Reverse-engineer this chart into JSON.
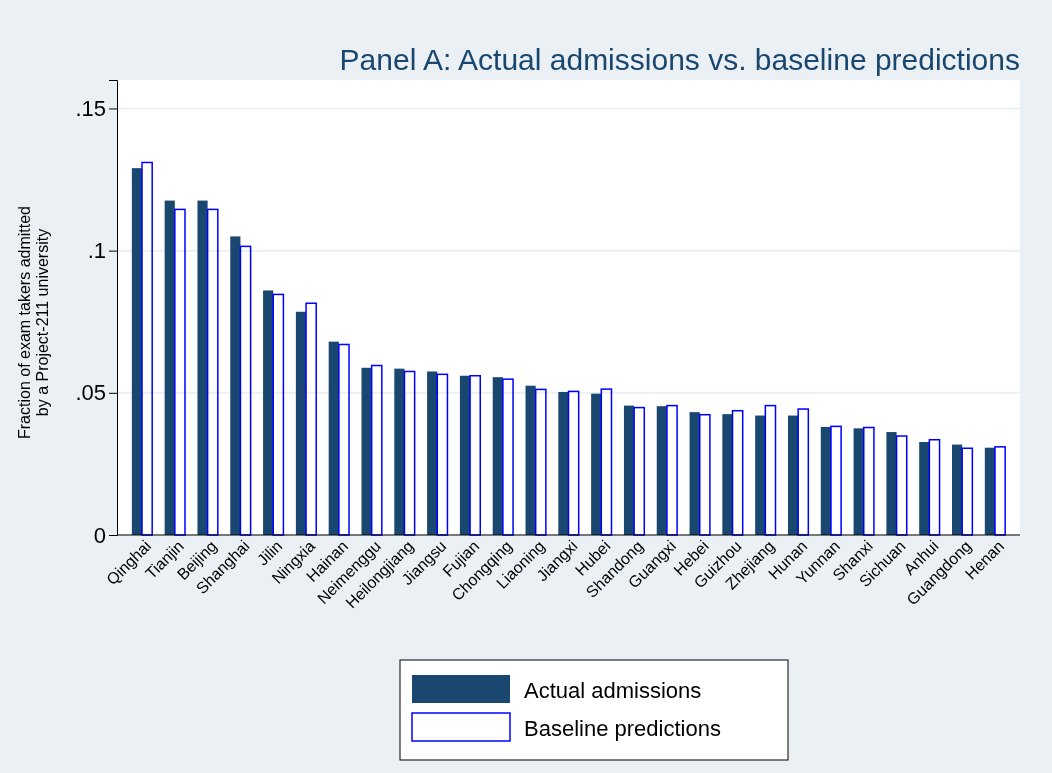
{
  "chart_data": {
    "type": "bar",
    "title": "Panel A: Actual admissions vs. baseline predictions",
    "ylabel": "Fraction of exam takers admitted\nby a Project-211 university",
    "categories": [
      "Qinghai",
      "Tianjin",
      "Beijing",
      "Shanghai",
      "Jilin",
      "Ningxia",
      "Hainan",
      "Neimenggu",
      "Heilongjiang",
      "Jiangsu",
      "Fujian",
      "Chongqing",
      "Liaoning",
      "Jiangxi",
      "Hubei",
      "Shandong",
      "Guangxi",
      "Hebei",
      "Guizhou",
      "Zhejiang",
      "Hunan",
      "Yunnan",
      "Shanxi",
      "Sichuan",
      "Anhui",
      "Guangdong",
      "Henan"
    ],
    "series": [
      {
        "name": "Actual admissions",
        "color": "#1a476f",
        "values": [
          0.129,
          0.1176,
          0.1176,
          0.105,
          0.086,
          0.0785,
          0.068,
          0.0588,
          0.0585,
          0.0575,
          0.056,
          0.0555,
          0.0525,
          0.0503,
          0.0497,
          0.0455,
          0.0453,
          0.0432,
          0.0425,
          0.042,
          0.042,
          0.038,
          0.0375,
          0.0362,
          0.0327,
          0.0318,
          0.0307
        ]
      },
      {
        "name": "Baseline predictions",
        "color": "#0000ff",
        "values": [
          0.131,
          0.1145,
          0.1145,
          0.1015,
          0.0846,
          0.0815,
          0.067,
          0.0596,
          0.0575,
          0.0565,
          0.056,
          0.0548,
          0.0512,
          0.0505,
          0.0513,
          0.0448,
          0.0455,
          0.0423,
          0.0437,
          0.0455,
          0.0443,
          0.0382,
          0.0378,
          0.0348,
          0.0335,
          0.0305,
          0.031
        ]
      }
    ],
    "ylim": [
      0,
      0.16
    ],
    "yticks": [
      {
        "value": 0,
        "label": "0"
      },
      {
        "value": 0.05,
        "label": ".05"
      },
      {
        "value": 0.1,
        "label": ".1"
      },
      {
        "value": 0.15,
        "label": ".15"
      }
    ],
    "grid": "y",
    "legend": "bottom"
  }
}
